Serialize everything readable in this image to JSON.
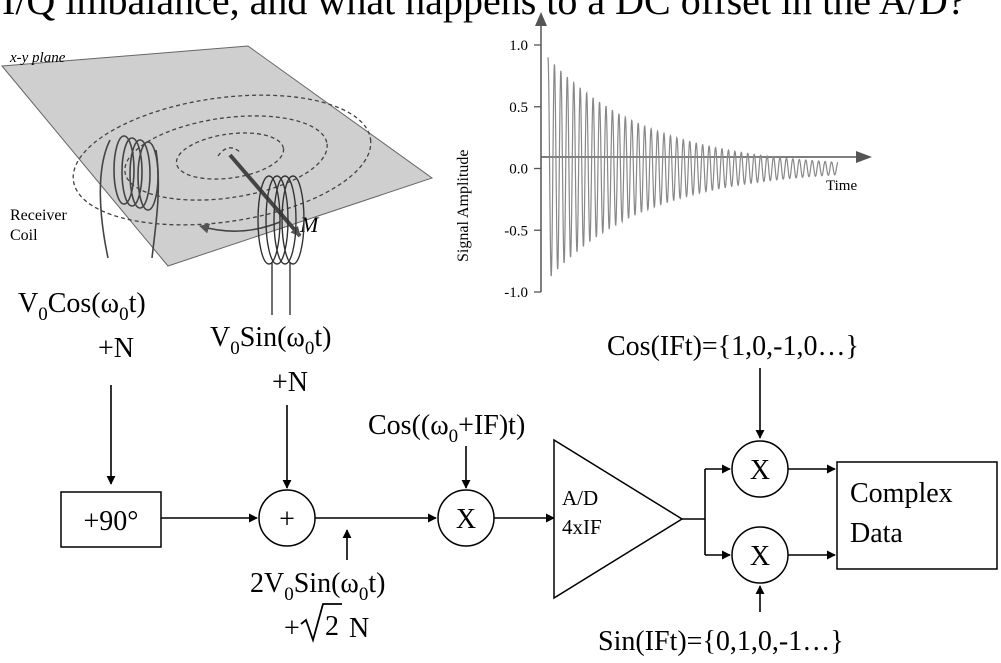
{
  "header_text": "I/Q imbalance, and what happens to a DC offset in the A/D?",
  "illustration": {
    "plane_label": "x-y plane",
    "coil_label_line1": "Receiver",
    "coil_label_line2": "Coil",
    "magnetization_label": "M"
  },
  "chart_data": {
    "type": "line",
    "title": "",
    "xlabel": "Time",
    "ylabel": "Signal Amplitude",
    "ylim": [
      -1.0,
      1.0
    ],
    "yticks": [
      "1.0",
      "0.5",
      "0.0",
      "-0.5",
      "-1.0"
    ],
    "series": [
      {
        "description_shape": "decaying sinusoid (free induction decay)",
        "amplitude_start": 0.9,
        "amplitude_end": 0.05,
        "cycles": 45
      }
    ],
    "grid": false
  },
  "diagram": {
    "input_cos": {
      "prefix": "V",
      "sub1": "0",
      "fn": "Cos(ω",
      "sub2": "0",
      "suffix": "t)",
      "noise": "+N"
    },
    "input_sin": {
      "prefix": "V",
      "sub1": "0",
      "fn": "Sin(ω",
      "sub2": "0",
      "suffix": "t)",
      "noise": "+N"
    },
    "phase_shift_label": "+90°",
    "sum_label": "+",
    "sum_output": {
      "prefix": "2V",
      "sub1": "0",
      "fn": "Sin(ω",
      "sub2": "0",
      "suffix": "t)",
      "noise_prefix": "+",
      "sqrt_arg": "2",
      "noise_suffix": " N"
    },
    "lo_label": {
      "prefix": "Cos((ω",
      "sub": "0",
      "suffix": "+IF)t)"
    },
    "mixer_label": "X",
    "adc_line1": "A/D",
    "adc_line2": "4xIF",
    "cos_if_label": "Cos(IFt)={1,0,-1,0…}",
    "sin_if_label": "Sin(IFt)={0,1,0,-1…}",
    "output_line1": "Complex",
    "output_line2": "Data"
  }
}
